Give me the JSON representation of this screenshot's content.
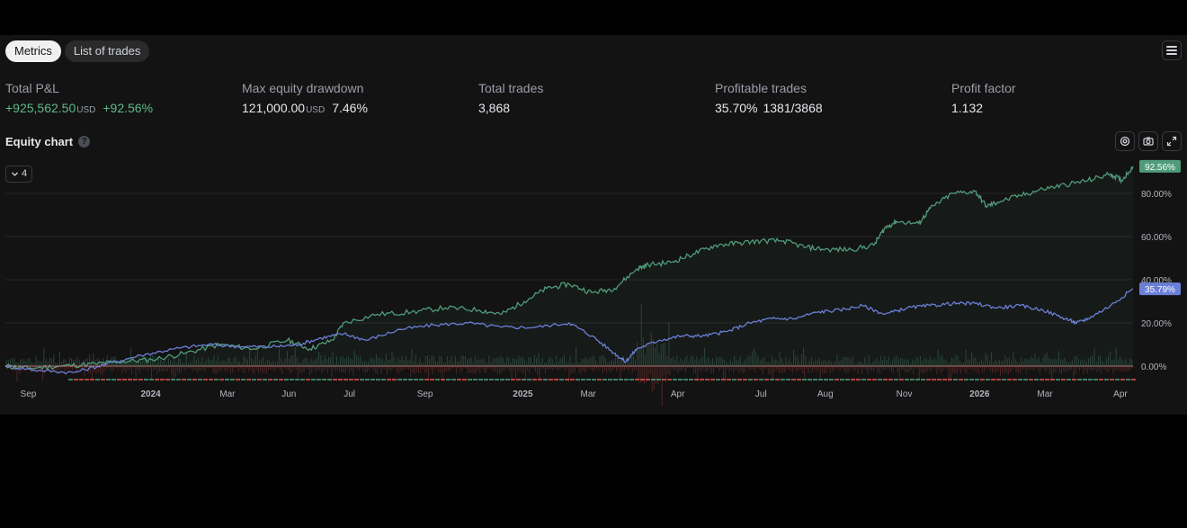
{
  "tabs": [
    "Metrics",
    "List of trades"
  ],
  "metrics": [
    {
      "label": "Total P&L",
      "value": "+925,562.50",
      "unit": "USD",
      "pct": "+92.56%",
      "positive": true
    },
    {
      "label": "Max equity drawdown",
      "value": "121,000.00",
      "unit": "USD",
      "pct": "7.46%",
      "positive": false
    },
    {
      "label": "Total trades",
      "value": "3,868",
      "unit": "",
      "pct": "",
      "positive": false
    },
    {
      "label": "Profitable trades",
      "value": "35.70%",
      "unit": "",
      "pct": "1381/3868",
      "positive": false
    },
    {
      "label": "Profit factor",
      "value": "1.132",
      "unit": "",
      "pct": "",
      "positive": false
    }
  ],
  "equity_title": "Equity chart",
  "collapse_count": "4",
  "colors": {
    "strategy": "#4f9b7a",
    "buy_hold": "#6b7fd7",
    "positive": "#5fb98a",
    "negative": "#d9534f"
  },
  "chart_data": {
    "type": "line",
    "title": "Equity chart",
    "ylim": [
      -5,
      95
    ],
    "y_ticks": [
      "0.00%",
      "20.00%",
      "40.00%",
      "60.00%",
      "80.00%"
    ],
    "y_tick_values": [
      0,
      20,
      40,
      60,
      80
    ],
    "x_ticks": [
      {
        "label": "Sep",
        "x": 0.01,
        "bold": false
      },
      {
        "label": "2024",
        "x": 0.12,
        "bold": true
      },
      {
        "label": "Mar",
        "x": 0.19,
        "bold": false
      },
      {
        "label": "Jun",
        "x": 0.245,
        "bold": false
      },
      {
        "label": "Jul",
        "x": 0.3,
        "bold": false
      },
      {
        "label": "Sep",
        "x": 0.365,
        "bold": false
      },
      {
        "label": "2025",
        "x": 0.45,
        "bold": true
      },
      {
        "label": "Mar",
        "x": 0.51,
        "bold": false
      },
      {
        "label": "Apr",
        "x": 0.59,
        "bold": false
      },
      {
        "label": "Jul",
        "x": 0.665,
        "bold": false
      },
      {
        "label": "Aug",
        "x": 0.72,
        "bold": false
      },
      {
        "label": "Nov",
        "x": 0.79,
        "bold": false
      },
      {
        "label": "2026",
        "x": 0.855,
        "bold": true
      },
      {
        "label": "Mar",
        "x": 0.915,
        "bold": false
      },
      {
        "label": "Apr",
        "x": 0.995,
        "bold": false
      }
    ],
    "series": [
      {
        "name": "",
        "last_label": "92.56%",
        "points": [
          [
            0,
            0
          ],
          [
            0.02,
            -1
          ],
          [
            0.05,
            0
          ],
          [
            0.08,
            1
          ],
          [
            0.1,
            2
          ],
          [
            0.13,
            3
          ],
          [
            0.16,
            6
          ],
          [
            0.19,
            10
          ],
          [
            0.22,
            8
          ],
          [
            0.25,
            12
          ],
          [
            0.27,
            8
          ],
          [
            0.29,
            12
          ],
          [
            0.3,
            20
          ],
          [
            0.33,
            24
          ],
          [
            0.36,
            25
          ],
          [
            0.39,
            27
          ],
          [
            0.42,
            26
          ],
          [
            0.44,
            24
          ],
          [
            0.46,
            30
          ],
          [
            0.48,
            36
          ],
          [
            0.5,
            38
          ],
          [
            0.52,
            34
          ],
          [
            0.54,
            36
          ],
          [
            0.56,
            45
          ],
          [
            0.57,
            47
          ],
          [
            0.59,
            48
          ],
          [
            0.61,
            52
          ],
          [
            0.63,
            56
          ],
          [
            0.65,
            57
          ],
          [
            0.67,
            58
          ],
          [
            0.69,
            58
          ],
          [
            0.71,
            55
          ],
          [
            0.73,
            54
          ],
          [
            0.75,
            54
          ],
          [
            0.77,
            56
          ],
          [
            0.78,
            64
          ],
          [
            0.79,
            67
          ],
          [
            0.81,
            66
          ],
          [
            0.82,
            73
          ],
          [
            0.84,
            80
          ],
          [
            0.86,
            81
          ],
          [
            0.87,
            74
          ],
          [
            0.88,
            76
          ],
          [
            0.9,
            79
          ],
          [
            0.92,
            82
          ],
          [
            0.94,
            84
          ],
          [
            0.96,
            86
          ],
          [
            0.98,
            89
          ],
          [
            0.99,
            86
          ],
          [
            1,
            92.56
          ]
        ]
      },
      {
        "name": "",
        "last_label": "35.79%",
        "points": [
          [
            0,
            0
          ],
          [
            0.03,
            -2
          ],
          [
            0.06,
            -3
          ],
          [
            0.09,
            1
          ],
          [
            0.12,
            5
          ],
          [
            0.15,
            8
          ],
          [
            0.18,
            10
          ],
          [
            0.21,
            9
          ],
          [
            0.24,
            9
          ],
          [
            0.26,
            10
          ],
          [
            0.28,
            13
          ],
          [
            0.3,
            15
          ],
          [
            0.32,
            12
          ],
          [
            0.35,
            17
          ],
          [
            0.38,
            19
          ],
          [
            0.41,
            20
          ],
          [
            0.44,
            18
          ],
          [
            0.47,
            18
          ],
          [
            0.5,
            20
          ],
          [
            0.52,
            14
          ],
          [
            0.54,
            6
          ],
          [
            0.55,
            2
          ],
          [
            0.56,
            8
          ],
          [
            0.58,
            12
          ],
          [
            0.6,
            14
          ],
          [
            0.62,
            14
          ],
          [
            0.64,
            16
          ],
          [
            0.66,
            20
          ],
          [
            0.68,
            22
          ],
          [
            0.7,
            22
          ],
          [
            0.72,
            25
          ],
          [
            0.74,
            26
          ],
          [
            0.76,
            28
          ],
          [
            0.78,
            24
          ],
          [
            0.8,
            27
          ],
          [
            0.82,
            28
          ],
          [
            0.84,
            29
          ],
          [
            0.86,
            29
          ],
          [
            0.88,
            27
          ],
          [
            0.9,
            28
          ],
          [
            0.92,
            26
          ],
          [
            0.94,
            22
          ],
          [
            0.95,
            20
          ],
          [
            0.96,
            22
          ],
          [
            0.98,
            28
          ],
          [
            1,
            35.79
          ]
        ]
      }
    ]
  }
}
